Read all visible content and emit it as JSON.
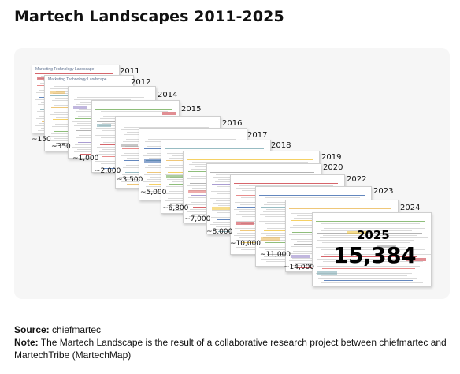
{
  "title": "Martech Landscapes 2011-2025",
  "chart_data": {
    "type": "timeline-stack",
    "landscapes": [
      {
        "year": "2011",
        "count": "~150",
        "header": "Marketing Technology Landscape"
      },
      {
        "year": "2012",
        "count": "~350",
        "header": "Marketing Technology Landscape"
      },
      {
        "year": "2014",
        "count": "~1,000",
        "header": ""
      },
      {
        "year": "2015",
        "count": "~2,000",
        "header": ""
      },
      {
        "year": "2016",
        "count": "~3,500",
        "header": ""
      },
      {
        "year": "2017",
        "count": "~5,000",
        "header": ""
      },
      {
        "year": "2018",
        "count": "~6,800",
        "header": ""
      },
      {
        "year": "2019",
        "count": "~7,000",
        "header": ""
      },
      {
        "year": "2020",
        "count": "~8,000",
        "header": ""
      },
      {
        "year": "2022",
        "count": "~10,000",
        "header": ""
      },
      {
        "year": "2023",
        "count": "~11,000",
        "header": ""
      },
      {
        "year": "2024",
        "count": "~14,000",
        "header": ""
      },
      {
        "year": "2025",
        "count": "15,384",
        "header": ""
      }
    ],
    "highlight": {
      "year": "2025",
      "value": "15,384"
    }
  },
  "footer": {
    "source_label": "Source:",
    "source_text": " chiefmartec",
    "note_label": "Note:",
    "note_text": " The Martech Landscape is the result of  a collaborative research project between chiefmartec and MartechTribe (MartechMap)"
  },
  "colors": {
    "card_bg": "#f6f6f6",
    "slide_border": "#cfcfcf",
    "accent_red": "#c8323a",
    "accent_blue": "#2f5fa8"
  }
}
